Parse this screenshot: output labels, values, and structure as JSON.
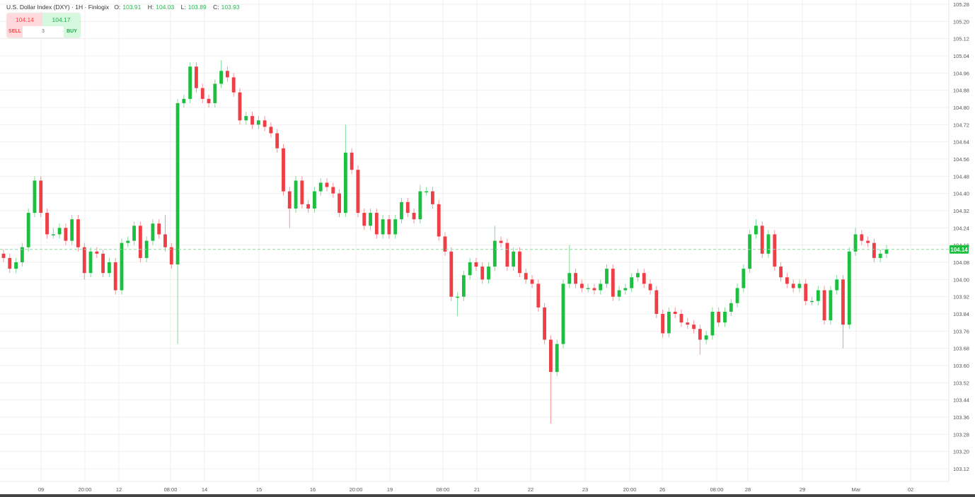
{
  "header": {
    "title": "U.S. Dollar Index (DXY) · 1H · Finlogix",
    "o_label": "O:",
    "o": "103.91",
    "h_label": "H:",
    "h": "104.03",
    "l_label": "L:",
    "l": "103.89",
    "c_label": "C:",
    "c": "103.93"
  },
  "trade": {
    "sell_price": "104.14",
    "buy_price": "104.17",
    "sell_label": "SELL",
    "buy_label": "BUY",
    "quantity": "3"
  },
  "colors": {
    "up": "#1cbf3f",
    "down": "#ee3e46",
    "price_line": "#8fdca5",
    "grid": "#efefef"
  },
  "chart_data": {
    "type": "candlestick",
    "title": "U.S. Dollar Index (DXY)",
    "interval": "1H",
    "ylim": [
      103.12,
      105.28
    ],
    "y_ticks": [
      "105.28",
      "105.20",
      "105.12",
      "105.04",
      "104.96",
      "104.88",
      "104.80",
      "104.72",
      "104.64",
      "104.56",
      "104.48",
      "104.40",
      "104.32",
      "104.24",
      "104.16",
      "104.08",
      "104.00",
      "103.92",
      "103.84",
      "103.76",
      "103.68",
      "103.60",
      "103.52",
      "103.44",
      "103.36",
      "103.28",
      "103.20",
      "103.12"
    ],
    "x_ticks": [
      "09",
      "20:00",
      "12",
      "08:00",
      "14",
      "15",
      "16",
      "20:00",
      "19",
      "08:00",
      "21",
      "22",
      "23",
      "20:00",
      "26",
      "08:00",
      "28",
      "29",
      "Mar",
      "02"
    ],
    "grid": true,
    "last_price": "104.14",
    "candles_ohlc": [
      [
        104.12,
        104.14,
        104.08,
        104.1
      ],
      [
        104.1,
        104.12,
        104.03,
        104.05
      ],
      [
        104.05,
        104.1,
        104.03,
        104.08
      ],
      [
        104.08,
        104.17,
        104.06,
        104.15
      ],
      [
        104.15,
        104.33,
        104.13,
        104.31
      ],
      [
        104.31,
        104.48,
        104.29,
        104.46
      ],
      [
        104.46,
        104.48,
        104.29,
        104.31
      ],
      [
        104.31,
        104.33,
        104.19,
        104.21
      ],
      [
        104.21,
        104.24,
        104.19,
        104.21
      ],
      [
        104.21,
        104.26,
        104.19,
        104.24
      ],
      [
        104.24,
        104.26,
        104.16,
        104.18
      ],
      [
        104.18,
        104.3,
        104.16,
        104.28
      ],
      [
        104.28,
        104.3,
        104.13,
        104.15
      ],
      [
        104.15,
        104.17,
        104.0,
        104.03
      ],
      [
        104.03,
        104.15,
        104.01,
        104.13
      ],
      [
        104.13,
        104.15,
        104.1,
        104.12
      ],
      [
        104.12,
        104.14,
        104.01,
        104.03
      ],
      [
        104.03,
        104.1,
        104.01,
        104.08
      ],
      [
        104.08,
        104.1,
        103.93,
        103.95
      ],
      [
        103.95,
        104.19,
        103.93,
        104.17
      ],
      [
        104.17,
        104.2,
        104.15,
        104.18
      ],
      [
        104.18,
        104.27,
        104.16,
        104.25
      ],
      [
        104.25,
        104.27,
        104.08,
        104.1
      ],
      [
        104.1,
        104.2,
        104.08,
        104.18
      ],
      [
        104.18,
        104.28,
        104.16,
        104.26
      ],
      [
        104.26,
        104.28,
        104.19,
        104.21
      ],
      [
        104.21,
        104.3,
        104.13,
        104.15
      ],
      [
        104.15,
        104.17,
        104.05,
        104.07
      ],
      [
        104.07,
        104.84,
        103.7,
        104.82
      ],
      [
        104.82,
        104.86,
        104.8,
        104.84
      ],
      [
        104.84,
        105.01,
        104.82,
        104.99
      ],
      [
        104.99,
        105.01,
        104.87,
        104.89
      ],
      [
        104.89,
        104.91,
        104.82,
        104.84
      ],
      [
        104.84,
        104.86,
        104.8,
        104.82
      ],
      [
        104.82,
        104.93,
        104.8,
        104.91
      ],
      [
        104.91,
        105.02,
        104.89,
        104.97
      ],
      [
        104.97,
        104.99,
        104.92,
        104.94
      ],
      [
        104.94,
        104.96,
        104.85,
        104.87
      ],
      [
        104.87,
        104.89,
        104.72,
        104.74
      ],
      [
        104.74,
        104.78,
        104.72,
        104.76
      ],
      [
        104.76,
        104.78,
        104.7,
        104.72
      ],
      [
        104.72,
        104.76,
        104.7,
        104.74
      ],
      [
        104.74,
        104.76,
        104.69,
        104.71
      ],
      [
        104.71,
        104.73,
        104.66,
        104.68
      ],
      [
        104.68,
        104.7,
        104.59,
        104.61
      ],
      [
        104.61,
        104.63,
        104.39,
        104.41
      ],
      [
        104.41,
        104.43,
        104.24,
        104.33
      ],
      [
        104.33,
        104.48,
        104.31,
        104.46
      ],
      [
        104.46,
        104.48,
        104.33,
        104.35
      ],
      [
        104.35,
        104.37,
        104.31,
        104.33
      ],
      [
        104.33,
        104.43,
        104.31,
        104.41
      ],
      [
        104.41,
        104.47,
        104.39,
        104.45
      ],
      [
        104.45,
        104.47,
        104.41,
        104.43
      ],
      [
        104.43,
        104.45,
        104.38,
        104.4
      ],
      [
        104.4,
        104.42,
        104.29,
        104.31
      ],
      [
        104.31,
        104.72,
        104.29,
        104.59
      ],
      [
        104.59,
        104.61,
        104.49,
        104.51
      ],
      [
        104.51,
        104.53,
        104.29,
        104.31
      ],
      [
        104.31,
        104.33,
        104.23,
        104.25
      ],
      [
        104.25,
        104.33,
        104.23,
        104.31
      ],
      [
        104.31,
        104.33,
        104.19,
        104.21
      ],
      [
        104.21,
        104.3,
        104.19,
        104.28
      ],
      [
        104.28,
        104.3,
        104.19,
        104.21
      ],
      [
        104.21,
        104.3,
        104.19,
        104.28
      ],
      [
        104.28,
        104.38,
        104.26,
        104.36
      ],
      [
        104.36,
        104.38,
        104.29,
        104.31
      ],
      [
        104.31,
        104.33,
        104.26,
        104.28
      ],
      [
        104.28,
        104.44,
        104.26,
        104.41
      ],
      [
        104.41,
        104.43,
        104.39,
        104.41
      ],
      [
        104.41,
        104.43,
        104.33,
        104.35
      ],
      [
        104.35,
        104.37,
        104.18,
        104.2
      ],
      [
        104.2,
        104.22,
        104.11,
        104.13
      ],
      [
        104.13,
        104.15,
        103.9,
        103.92
      ],
      [
        103.92,
        103.94,
        103.83,
        103.92
      ],
      [
        103.92,
        104.04,
        103.9,
        104.02
      ],
      [
        104.02,
        104.1,
        104.0,
        104.08
      ],
      [
        104.08,
        104.1,
        104.04,
        104.06
      ],
      [
        104.06,
        104.08,
        103.98,
        104.0
      ],
      [
        104.0,
        104.08,
        103.98,
        104.06
      ],
      [
        104.06,
        104.25,
        104.04,
        104.18
      ],
      [
        104.18,
        104.2,
        104.15,
        104.17
      ],
      [
        104.17,
        104.19,
        104.04,
        104.06
      ],
      [
        104.06,
        104.15,
        104.04,
        104.13
      ],
      [
        104.13,
        104.15,
        104.01,
        104.03
      ],
      [
        104.03,
        104.05,
        103.98,
        104.0
      ],
      [
        104.0,
        104.02,
        103.96,
        103.98
      ],
      [
        103.98,
        104.0,
        103.85,
        103.87
      ],
      [
        103.87,
        103.89,
        103.7,
        103.72
      ],
      [
        103.72,
        103.74,
        103.33,
        103.57
      ],
      [
        103.57,
        103.72,
        103.55,
        103.7
      ],
      [
        103.7,
        104.0,
        103.68,
        103.98
      ],
      [
        103.98,
        104.16,
        103.96,
        104.03
      ],
      [
        104.03,
        104.05,
        103.96,
        103.98
      ],
      [
        103.98,
        104.0,
        103.94,
        103.96
      ],
      [
        103.96,
        103.98,
        103.94,
        103.96
      ],
      [
        103.96,
        103.98,
        103.93,
        103.95
      ],
      [
        103.95,
        104.0,
        103.93,
        103.98
      ],
      [
        103.98,
        104.07,
        103.96,
        104.05
      ],
      [
        104.05,
        104.07,
        103.9,
        103.92
      ],
      [
        103.92,
        103.97,
        103.9,
        103.95
      ],
      [
        103.95,
        103.98,
        103.93,
        103.96
      ],
      [
        103.96,
        104.03,
        103.94,
        104.01
      ],
      [
        104.01,
        104.05,
        103.99,
        104.03
      ],
      [
        104.03,
        104.05,
        103.96,
        103.98
      ],
      [
        103.98,
        104.0,
        103.93,
        103.95
      ],
      [
        103.95,
        103.97,
        103.82,
        103.84
      ],
      [
        103.84,
        103.86,
        103.73,
        103.75
      ],
      [
        103.75,
        103.87,
        103.73,
        103.85
      ],
      [
        103.85,
        103.87,
        103.82,
        103.84
      ],
      [
        103.84,
        103.86,
        103.78,
        103.8
      ],
      [
        103.8,
        103.82,
        103.77,
        103.79
      ],
      [
        103.79,
        103.81,
        103.75,
        103.77
      ],
      [
        103.77,
        103.79,
        103.65,
        103.72
      ],
      [
        103.72,
        103.76,
        103.7,
        103.74
      ],
      [
        103.74,
        103.87,
        103.72,
        103.85
      ],
      [
        103.85,
        103.87,
        103.78,
        103.8
      ],
      [
        103.8,
        103.87,
        103.78,
        103.85
      ],
      [
        103.85,
        103.91,
        103.83,
        103.89
      ],
      [
        103.89,
        103.98,
        103.87,
        103.96
      ],
      [
        103.96,
        104.07,
        103.94,
        104.05
      ],
      [
        104.05,
        104.23,
        104.03,
        104.21
      ],
      [
        104.21,
        104.28,
        104.19,
        104.25
      ],
      [
        104.25,
        104.27,
        104.1,
        104.12
      ],
      [
        104.12,
        104.23,
        104.1,
        104.21
      ],
      [
        104.21,
        104.23,
        104.04,
        104.06
      ],
      [
        104.06,
        104.08,
        103.99,
        104.01
      ],
      [
        104.01,
        104.03,
        103.96,
        103.98
      ],
      [
        103.98,
        104.0,
        103.94,
        103.96
      ],
      [
        103.96,
        104.0,
        103.94,
        103.98
      ],
      [
        103.98,
        104.0,
        103.88,
        103.9
      ],
      [
        103.9,
        103.92,
        103.88,
        103.9
      ],
      [
        103.9,
        103.97,
        103.88,
        103.95
      ],
      [
        103.95,
        103.97,
        103.79,
        103.81
      ],
      [
        103.81,
        103.97,
        103.79,
        103.95
      ],
      [
        103.95,
        104.02,
        103.93,
        104.0
      ],
      [
        104.0,
        104.02,
        103.68,
        103.79
      ],
      [
        103.79,
        104.15,
        103.77,
        104.13
      ],
      [
        104.13,
        104.24,
        104.11,
        104.21
      ],
      [
        104.21,
        104.23,
        104.16,
        104.18
      ],
      [
        104.18,
        104.2,
        104.15,
        104.17
      ],
      [
        104.17,
        104.19,
        104.08,
        104.1
      ],
      [
        104.1,
        104.14,
        104.08,
        104.12
      ],
      [
        104.12,
        104.16,
        104.1,
        104.14
      ]
    ]
  }
}
